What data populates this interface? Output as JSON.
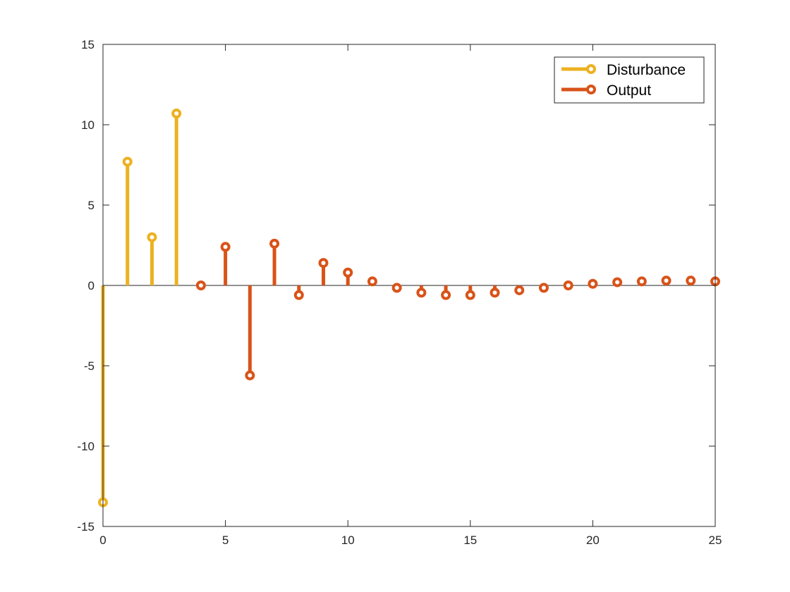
{
  "chart_data": {
    "type": "stem",
    "xlim": [
      0,
      25
    ],
    "ylim": [
      -15,
      15
    ],
    "x_ticks": [
      0,
      5,
      10,
      15,
      20,
      25
    ],
    "y_ticks": [
      -15,
      -10,
      -5,
      0,
      5,
      10,
      15
    ],
    "grid": false,
    "legend_position": "top-right",
    "series": [
      {
        "name": "Disturbance",
        "color": "#EDB120",
        "x": [
          0,
          1,
          2,
          3
        ],
        "y": [
          -13.5,
          7.7,
          3.0,
          10.7
        ]
      },
      {
        "name": "Output",
        "color": "#D95319",
        "x": [
          4,
          5,
          6,
          7,
          8,
          9,
          10,
          11,
          12,
          13,
          14,
          15,
          16,
          17,
          18,
          19,
          20,
          21,
          22,
          23,
          24,
          25
        ],
        "y": [
          0.0,
          2.4,
          -5.6,
          2.6,
          -0.6,
          1.4,
          0.8,
          0.25,
          -0.15,
          -0.45,
          -0.6,
          -0.6,
          -0.45,
          -0.3,
          -0.15,
          0.0,
          0.1,
          0.2,
          0.25,
          0.3,
          0.3,
          0.25
        ]
      }
    ]
  }
}
